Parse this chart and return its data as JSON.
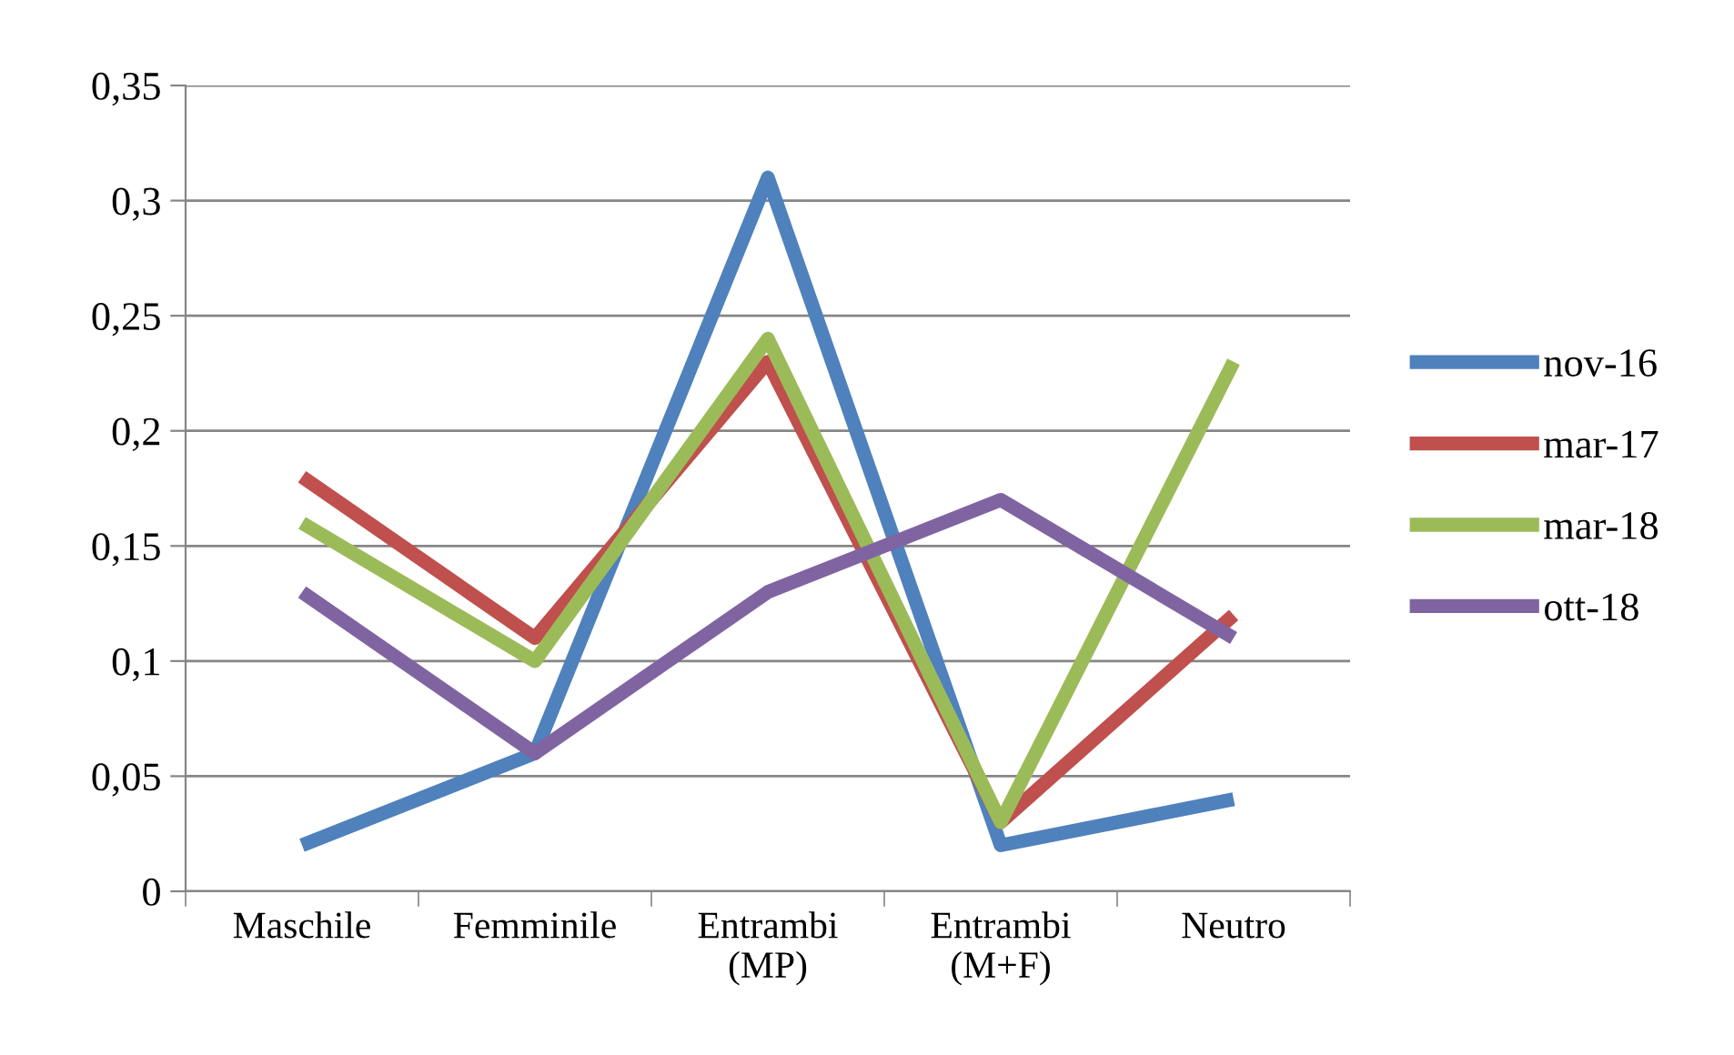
{
  "chart_data": {
    "type": "line",
    "categories": [
      "Maschile",
      "Femminile",
      "Entrambi\n(MP)",
      "Entrambi\n(M+F)",
      "Neutro"
    ],
    "series": [
      {
        "name": "nov-16",
        "color": "#4f81bd",
        "values": [
          0.02,
          0.06,
          0.31,
          0.02,
          0.04
        ]
      },
      {
        "name": "mar-17",
        "color": "#c0504d",
        "values": [
          0.18,
          0.11,
          0.23,
          0.03,
          0.12
        ]
      },
      {
        "name": "mar-18",
        "color": "#9bbb59",
        "values": [
          0.16,
          0.1,
          0.24,
          0.03,
          0.23
        ]
      },
      {
        "name": "ott-18",
        "color": "#8064a2",
        "values": [
          0.13,
          0.06,
          0.13,
          0.17,
          0.11
        ]
      }
    ],
    "ylim": [
      0,
      0.35
    ],
    "yticks": [
      0,
      {
        "value": 0.05,
        "label": "0,05"
      },
      {
        "value": 0.1,
        "label": "0,1"
      },
      {
        "value": 0.15,
        "label": "0,15"
      },
      {
        "value": 0.2,
        "label": "0,2"
      },
      {
        "value": 0.25,
        "label": "0,25"
      },
      {
        "value": 0.3,
        "label": "0,3"
      },
      {
        "value": 0.35,
        "label": "0,35"
      }
    ],
    "grid": "y",
    "legend": "right",
    "marker": "none",
    "line_style": "solid"
  }
}
